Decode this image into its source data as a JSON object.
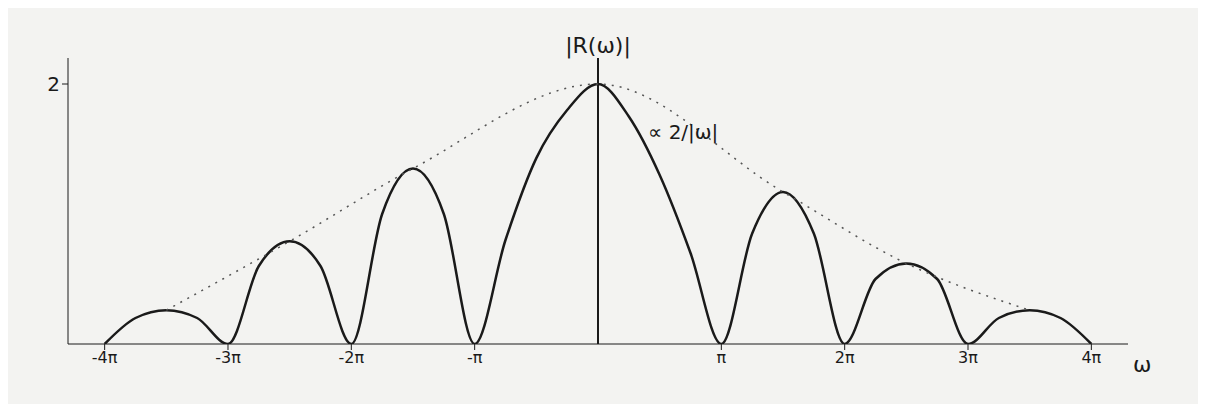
{
  "chart_data": {
    "type": "line",
    "x_label": "ω",
    "y_label": "|R(ω)|",
    "annotations": [
      "∝ 2/|ω|"
    ],
    "x": [
      -12.5664,
      -11.781,
      -10.9956,
      -10.2102,
      -9.4248,
      -8.6394,
      -7.854,
      -7.0686,
      -6.2832,
      -5.4978,
      -4.7124,
      -3.927,
      -3.1416,
      -2.3562,
      -1.5708,
      -0.7854,
      0,
      0.7854,
      1.5708,
      2.3562,
      3.1416,
      3.927,
      4.7124,
      5.4978,
      6.2832,
      7.0686,
      7.854,
      8.6394,
      9.4248,
      10.2102,
      10.9956,
      11.781,
      12.5664
    ],
    "series": [
      {
        "color": "#1a1a1a",
        "line_style": "solid",
        "values": [
          0,
          0.2,
          0.26,
          0.2,
          0,
          0.6,
          0.79,
          0.6,
          0,
          1.0,
          1.35,
          1.0,
          0,
          0.8,
          1.43,
          1.8,
          2,
          1.75,
          1.3,
          0.7,
          0,
          0.85,
          1.17,
          0.85,
          0,
          0.5,
          0.62,
          0.5,
          0,
          0.2,
          0.26,
          0.2,
          0
        ]
      },
      {
        "color": "#555555",
        "line_style": "dotted",
        "values": [
          null,
          null,
          0.26,
          null,
          null,
          null,
          0.79,
          null,
          null,
          null,
          1.35,
          null,
          null,
          null,
          null,
          null,
          2,
          null,
          null,
          null,
          null,
          null,
          1.17,
          null,
          null,
          null,
          0.62,
          null,
          null,
          null,
          0.26,
          null,
          null
        ]
      }
    ],
    "xlim": [
      -13.5,
      13.5
    ],
    "xticks": [
      {
        "value": -12.5664,
        "label": "-4π"
      },
      {
        "value": -9.4248,
        "label": "-3π"
      },
      {
        "value": -6.2832,
        "label": "-2π"
      },
      {
        "value": -3.1416,
        "label": "-π"
      },
      {
        "value": 3.1416,
        "label": "π"
      },
      {
        "value": 6.2832,
        "label": "2π"
      },
      {
        "value": 9.4248,
        "label": "3π"
      },
      {
        "value": 12.5664,
        "label": "4π"
      }
    ],
    "ylim": [
      0,
      2.2
    ],
    "yticks": [
      2
    ],
    "grid": false
  }
}
